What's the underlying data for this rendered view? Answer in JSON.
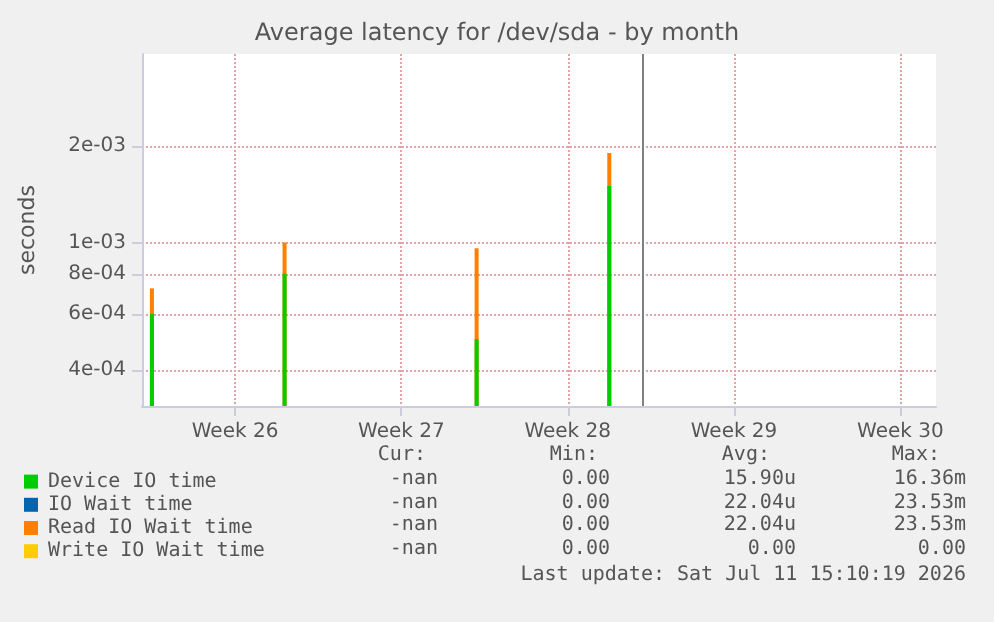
{
  "chart_data": {
    "type": "bar",
    "title": "Average latency for /dev/sda - by month",
    "ylabel": "seconds",
    "log": "y",
    "ylim": [
      0.00031,
      0.00386
    ],
    "yticks": [
      {
        "value": 0.0004,
        "label": "4e-04"
      },
      {
        "value": 0.0006,
        "label": "6e-04"
      },
      {
        "value": 0.0008,
        "label": "8e-04"
      },
      {
        "value": 0.001,
        "label": "1e-03"
      },
      {
        "value": 0.002,
        "label": "2e-03"
      }
    ],
    "xlim": [
      "2026-06-21T14:00",
      "2026-07-25T00:00"
    ],
    "xticks": [
      {
        "value": "2026-06-25T12:00",
        "label": "Week 26"
      },
      {
        "value": "2026-07-02T12:00",
        "label": "Week 27"
      },
      {
        "value": "2026-07-09T12:00",
        "label": "Week 28"
      },
      {
        "value": "2026-07-16T12:00",
        "label": "Week 29"
      },
      {
        "value": "2026-07-23T12:00",
        "label": "Week 30"
      }
    ],
    "grid": true,
    "legend": "bottom left",
    "series": [
      {
        "name": "Device IO time",
        "color": "#00cc00",
        "x": [
          "2026-06-22T00:00",
          "2026-06-27T14:00",
          "2026-07-05T16:00",
          "2026-07-11T06:00"
        ],
        "values": [
          0.0006,
          0.0008,
          0.0005,
          0.0015
        ]
      },
      {
        "name": "IO Wait time",
        "color": "#0066b3"
      },
      {
        "name": "Read IO Wait time",
        "color": "#ff8000",
        "x": [
          "2026-06-22T00:00",
          "2026-06-27T14:00",
          "2026-07-05T16:00",
          "2026-07-11T06:00"
        ],
        "values": [
          0.00072,
          0.001,
          0.00096,
          0.0019
        ]
      },
      {
        "name": "Write IO Wait time",
        "color": "#ffcc00"
      }
    ],
    "ref_lines": [
      {
        "axis": "x",
        "value": "2026-07-12T16:00",
        "color": "#808080"
      }
    ],
    "annotations": [
      "Cur:",
      "Min:",
      "Avg:",
      "Max:",
      "-nan",
      "0.00",
      "15.90u",
      "16.36m",
      "-nan",
      "0.00",
      "22.04u",
      "23.53m",
      "-nan",
      "0.00",
      "22.04u",
      "23.53m",
      "-nan",
      "0.00",
      "0.00",
      "0.00",
      "Last update: Sat Jul 11 15:10:19 2026"
    ]
  }
}
